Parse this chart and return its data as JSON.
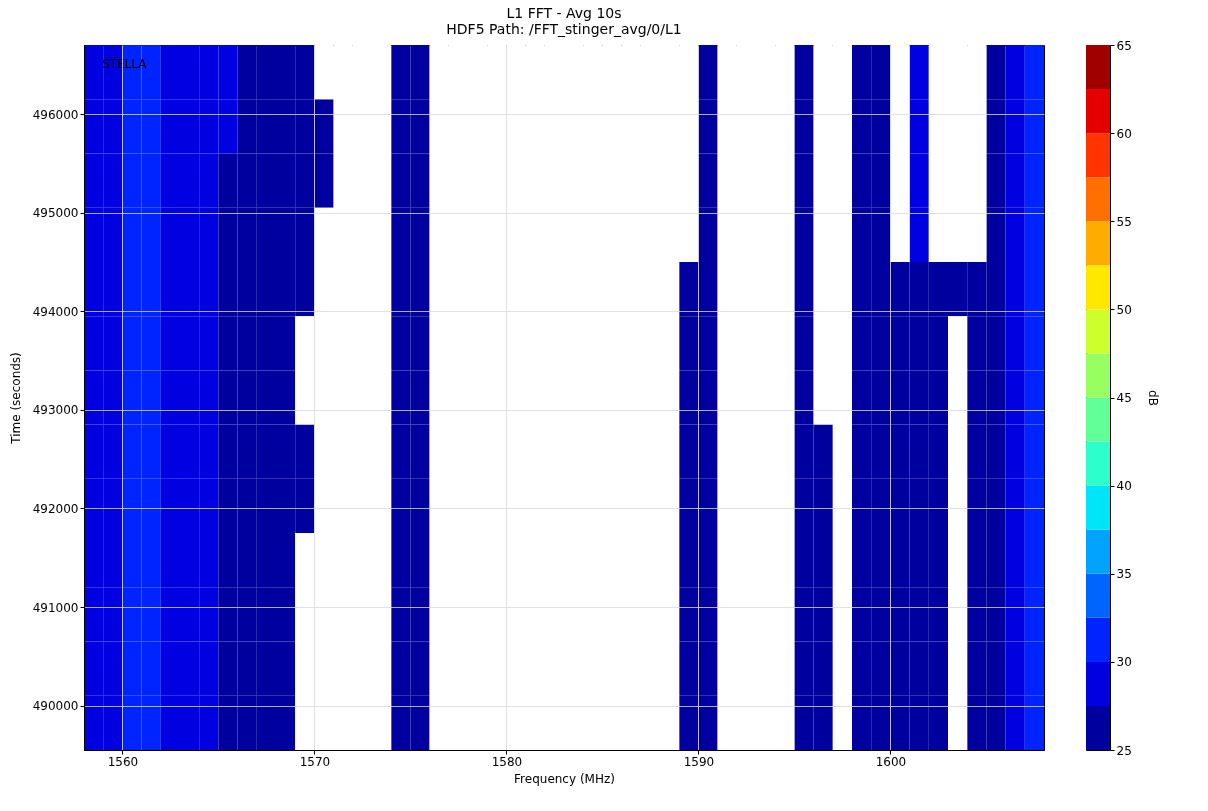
{
  "chart_data": {
    "type": "heatmap",
    "title": "L1 FFT - Avg 10s",
    "subtitle": "HDF5 Path: /FFT_stinger_avg/0/L1",
    "xlabel": "Frequency (MHz)",
    "ylabel": "Time (seconds)",
    "clabel": "dB",
    "annotations": [
      "STELLA"
    ],
    "x": [
      1558.5,
      1559.5,
      1560.5,
      1561.5,
      1562.5,
      1563.5,
      1564.5,
      1565.5,
      1566.5,
      1567.5,
      1568.5,
      1569.5,
      1570.5,
      1571.5,
      1572.5,
      1573.5,
      1574.5,
      1575.5,
      1576.5,
      1577.5,
      1578.5,
      1579.5,
      1580.5,
      1581.5,
      1582.5,
      1583.5,
      1584.5,
      1585.5,
      1586.5,
      1587.5,
      1588.5,
      1589.5,
      1590.5,
      1591.5,
      1592.5,
      1593.5,
      1594.5,
      1595.5,
      1596.5,
      1597.5,
      1598.5,
      1599.5,
      1600.5,
      1601.5,
      1602.5,
      1603.5,
      1604.5,
      1605.5,
      1606.5,
      1607.5
    ],
    "y": [
      496425,
      495875,
      495325,
      494775,
      494225,
      493675,
      493125,
      492575,
      492025,
      491475,
      490925,
      490375,
      489825
    ],
    "cells": [
      [
        29,
        29,
        31,
        31,
        29,
        29,
        29,
        29,
        26,
        26,
        26,
        26,
        null,
        null,
        null,
        null,
        26,
        26,
        null,
        null,
        null,
        null,
        null,
        null,
        null,
        null,
        null,
        null,
        null,
        null,
        null,
        null,
        26,
        null,
        null,
        null,
        null,
        26,
        null,
        null,
        26,
        26,
        null,
        29,
        null,
        null,
        null,
        26,
        29,
        31
      ],
      [
        29,
        29,
        31,
        31,
        29,
        29,
        29,
        29,
        26,
        26,
        26,
        26,
        26,
        null,
        null,
        null,
        26,
        26,
        null,
        null,
        null,
        null,
        null,
        null,
        null,
        null,
        null,
        null,
        null,
        null,
        null,
        null,
        26,
        null,
        null,
        null,
        null,
        26,
        null,
        null,
        26,
        26,
        null,
        29,
        null,
        null,
        null,
        26,
        29,
        31
      ],
      [
        29,
        29,
        31,
        31,
        29,
        29,
        29,
        26,
        26,
        26,
        26,
        26,
        26,
        null,
        null,
        null,
        26,
        26,
        null,
        null,
        null,
        null,
        null,
        null,
        null,
        null,
        null,
        null,
        null,
        null,
        null,
        null,
        26,
        null,
        null,
        null,
        null,
        26,
        null,
        null,
        26,
        26,
        null,
        29,
        null,
        null,
        null,
        26,
        29,
        31
      ],
      [
        29,
        29,
        31,
        31,
        29,
        29,
        29,
        26,
        26,
        26,
        26,
        26,
        null,
        null,
        null,
        null,
        26,
        26,
        null,
        null,
        null,
        null,
        null,
        null,
        null,
        null,
        null,
        null,
        null,
        null,
        null,
        null,
        26,
        null,
        null,
        null,
        null,
        26,
        null,
        null,
        26,
        26,
        null,
        29,
        null,
        null,
        null,
        26,
        29,
        31
      ],
      [
        29,
        29,
        31,
        31,
        29,
        29,
        29,
        26,
        26,
        26,
        26,
        26,
        null,
        null,
        null,
        null,
        26,
        26,
        null,
        null,
        null,
        null,
        null,
        null,
        null,
        null,
        null,
        null,
        null,
        null,
        null,
        26,
        26,
        null,
        null,
        null,
        null,
        26,
        null,
        null,
        26,
        26,
        26,
        26,
        26,
        26,
        26,
        26,
        29,
        31
      ],
      [
        29,
        29,
        31,
        31,
        29,
        29,
        29,
        26,
        26,
        26,
        26,
        null,
        null,
        null,
        null,
        null,
        26,
        26,
        null,
        null,
        null,
        null,
        null,
        null,
        null,
        null,
        null,
        null,
        null,
        null,
        null,
        26,
        26,
        null,
        null,
        null,
        null,
        26,
        null,
        null,
        26,
        26,
        26,
        26,
        26,
        null,
        26,
        26,
        29,
        31
      ],
      [
        29,
        29,
        31,
        31,
        29,
        29,
        29,
        26,
        26,
        26,
        26,
        null,
        null,
        null,
        null,
        null,
        26,
        26,
        null,
        null,
        null,
        null,
        null,
        null,
        null,
        null,
        null,
        null,
        null,
        null,
        null,
        26,
        26,
        null,
        null,
        null,
        null,
        26,
        null,
        null,
        26,
        26,
        26,
        26,
        26,
        null,
        26,
        26,
        29,
        31
      ],
      [
        29,
        29,
        31,
        31,
        29,
        29,
        29,
        26,
        26,
        26,
        26,
        26,
        null,
        null,
        null,
        null,
        26,
        26,
        null,
        null,
        null,
        null,
        null,
        null,
        null,
        null,
        null,
        null,
        null,
        null,
        null,
        26,
        26,
        null,
        null,
        null,
        null,
        26,
        26,
        null,
        26,
        26,
        26,
        26,
        26,
        null,
        26,
        26,
        29,
        31
      ],
      [
        29,
        29,
        31,
        31,
        29,
        29,
        29,
        26,
        26,
        26,
        26,
        26,
        null,
        null,
        null,
        null,
        26,
        26,
        null,
        null,
        null,
        null,
        null,
        null,
        null,
        null,
        null,
        null,
        null,
        null,
        null,
        26,
        26,
        null,
        null,
        null,
        null,
        26,
        26,
        null,
        26,
        26,
        26,
        26,
        26,
        null,
        26,
        26,
        29,
        31
      ],
      [
        29,
        29,
        31,
        31,
        29,
        29,
        29,
        26,
        26,
        26,
        26,
        null,
        null,
        null,
        null,
        null,
        26,
        26,
        null,
        null,
        null,
        null,
        null,
        null,
        null,
        null,
        null,
        null,
        null,
        null,
        null,
        26,
        26,
        null,
        null,
        null,
        null,
        26,
        26,
        null,
        26,
        26,
        26,
        26,
        26,
        null,
        26,
        26,
        29,
        31
      ],
      [
        29,
        29,
        31,
        31,
        29,
        29,
        29,
        26,
        26,
        26,
        26,
        null,
        null,
        null,
        null,
        null,
        26,
        26,
        null,
        null,
        null,
        null,
        null,
        null,
        null,
        null,
        null,
        null,
        null,
        null,
        null,
        26,
        26,
        null,
        null,
        null,
        null,
        26,
        26,
        null,
        26,
        26,
        26,
        26,
        26,
        null,
        26,
        26,
        29,
        31
      ],
      [
        29,
        29,
        31,
        31,
        29,
        29,
        29,
        26,
        26,
        26,
        26,
        null,
        null,
        null,
        null,
        null,
        26,
        26,
        null,
        null,
        null,
        null,
        null,
        null,
        null,
        null,
        null,
        null,
        null,
        null,
        null,
        26,
        26,
        null,
        null,
        null,
        null,
        26,
        26,
        null,
        26,
        26,
        26,
        26,
        26,
        null,
        26,
        26,
        29,
        31
      ],
      [
        29,
        29,
        31,
        31,
        29,
        29,
        29,
        26,
        26,
        26,
        26,
        null,
        null,
        null,
        null,
        null,
        26,
        26,
        null,
        null,
        null,
        null,
        null,
        null,
        null,
        null,
        null,
        null,
        null,
        null,
        null,
        26,
        26,
        null,
        null,
        null,
        null,
        26,
        26,
        null,
        26,
        26,
        26,
        26,
        26,
        null,
        26,
        26,
        29,
        31
      ]
    ],
    "colors": [
      "#00009f",
      "#0000e0",
      "#0024ff",
      "#0064ff",
      "#00a4ff",
      "#00e4f8",
      "#2cffcc",
      "#60ff98",
      "#98ff60",
      "#ccff2c",
      "#ffe800",
      "#ffac00",
      "#ff7000",
      "#ff3400",
      "#e40000",
      "#a00000"
    ],
    "clim": [
      25,
      65
    ],
    "cticks": [
      25,
      30,
      35,
      40,
      45,
      50,
      55,
      60,
      65
    ],
    "xlim": [
      1558,
      1608
    ],
    "xticks": [
      1560,
      1570,
      1580,
      1590,
      1600
    ],
    "ylim": [
      489550,
      496700
    ],
    "yticks": [
      490000,
      491000,
      492000,
      493000,
      494000,
      495000,
      496000
    ],
    "grid": true
  }
}
